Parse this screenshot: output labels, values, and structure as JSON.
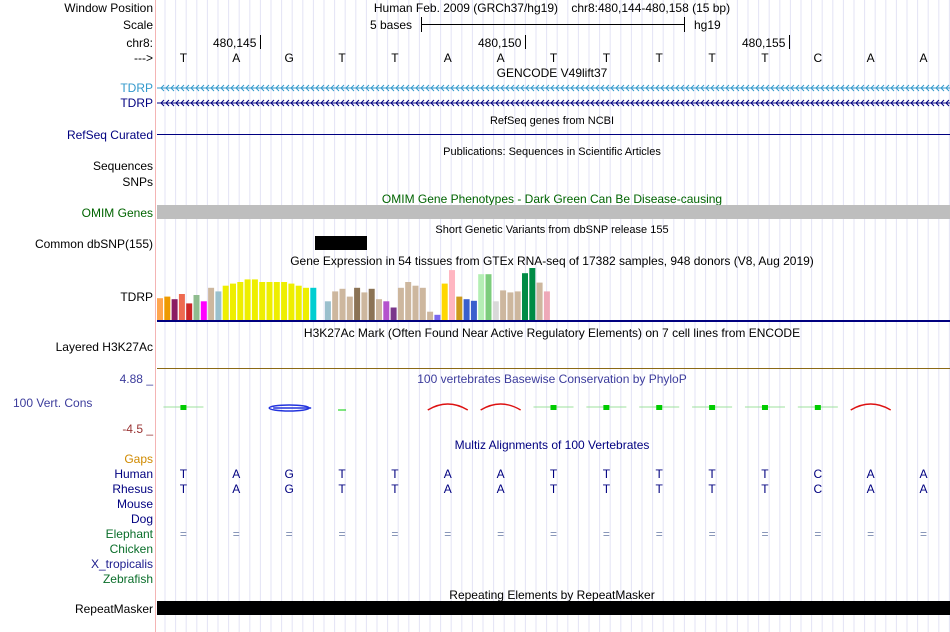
{
  "header": {
    "window_position_label": "Window Position",
    "window_position_value": "Human Feb. 2009 (GRCh37/hg19)    chr8:480,144-480,158 (15 bp)",
    "scale_label": "Scale",
    "scale_value": "5 bases",
    "scale_assembly": "hg19",
    "chrom_label": "chr8:",
    "coords": [
      "480,145",
      "480,150",
      "480,155"
    ],
    "strand_label": "--->"
  },
  "bases": [
    "T",
    "A",
    "G",
    "T",
    "T",
    "A",
    "A",
    "T",
    "T",
    "T",
    "T",
    "T",
    "C",
    "A",
    "A"
  ],
  "tracks": {
    "gencode": {
      "title": "GENCODE V49lift37",
      "items": [
        "TDRP",
        "TDRP"
      ]
    },
    "refseq": {
      "title": "RefSeq genes from NCBI",
      "label": "RefSeq Curated"
    },
    "publications": {
      "title": "Publications: Sequences in Scientific Articles",
      "labels": [
        "Sequences",
        "SNPs"
      ]
    },
    "omim": {
      "title": "OMIM Gene Phenotypes - Dark Green Can Be Disease-causing",
      "label": "OMIM Genes"
    },
    "dbsnp": {
      "title": "Short Genetic Variants from dbSNP release 155",
      "label": "Common dbSNP(155)"
    },
    "gtex": {
      "title": "Gene Expression in 54 tissues from GTEx RNA-seq of 17382 samples, 948 donors (V8, Aug 2019)",
      "label": "TDRP",
      "tissues": [
        {
          "value": 0.42,
          "color": "#FFA54F"
        },
        {
          "value": 0.45,
          "color": "#EE9A00"
        },
        {
          "value": 0.4,
          "color": "#8B1C62"
        },
        {
          "value": 0.5,
          "color": "#EE6A50"
        },
        {
          "value": 0.32,
          "color": "#CD2626"
        },
        {
          "value": 0.48,
          "color": "#8FBC8F"
        },
        {
          "value": 0.36,
          "color": "#FF00FF"
        },
        {
          "value": 0.62,
          "color": "#CDB79E"
        },
        {
          "value": 0.55,
          "color": "#9AC0CD"
        },
        {
          "value": 0.66,
          "color": "#EEEE00"
        },
        {
          "value": 0.7,
          "color": "#EEEE00"
        },
        {
          "value": 0.73,
          "color": "#EEEE00"
        },
        {
          "value": 0.78,
          "color": "#EEEE00"
        },
        {
          "value": 0.78,
          "color": "#EEEE00"
        },
        {
          "value": 0.73,
          "color": "#EEEE00"
        },
        {
          "value": 0.73,
          "color": "#EEEE00"
        },
        {
          "value": 0.73,
          "color": "#EEEE00"
        },
        {
          "value": 0.73,
          "color": "#EEEE00"
        },
        {
          "value": 0.7,
          "color": "#EEEE00"
        },
        {
          "value": 0.66,
          "color": "#EEEE00"
        },
        {
          "value": 0.62,
          "color": "#EEEE00"
        },
        {
          "value": 0.62,
          "color": "#00CED1"
        },
        {
          "value": 0.0,
          "color": "#7A67EE"
        },
        {
          "value": 0.36,
          "color": "#9AC0CD"
        },
        {
          "value": 0.55,
          "color": "#CDB79E"
        },
        {
          "value": 0.6,
          "color": "#CDB79E"
        },
        {
          "value": 0.45,
          "color": "#CDB79E"
        },
        {
          "value": 0.62,
          "color": "#8B7355"
        },
        {
          "value": 0.53,
          "color": "#CDB79E"
        },
        {
          "value": 0.6,
          "color": "#8B7355"
        },
        {
          "value": 0.4,
          "color": "#CDB79E"
        },
        {
          "value": 0.36,
          "color": "#B452CD"
        },
        {
          "value": 0.24,
          "color": "#7A378B"
        },
        {
          "value": 0.62,
          "color": "#CDB79E"
        },
        {
          "value": 0.73,
          "color": "#CDB79E"
        },
        {
          "value": 0.66,
          "color": "#CDB79E"
        },
        {
          "value": 0.62,
          "color": "#CDB79E"
        },
        {
          "value": 0.16,
          "color": "#CDB79E"
        },
        {
          "value": 0.1,
          "color": "#7A67EE"
        },
        {
          "value": 0.7,
          "color": "#FFD700"
        },
        {
          "value": 0.96,
          "color": "#FFB6C1"
        },
        {
          "value": 0.45,
          "color": "#CD9B1D"
        },
        {
          "value": 0.4,
          "color": "#3A5FCD"
        },
        {
          "value": 0.37,
          "color": "#3A5FCD"
        },
        {
          "value": 0.88,
          "color": "#B4EEB4"
        },
        {
          "value": 0.88,
          "color": "#7CCD7C"
        },
        {
          "value": 0.36,
          "color": "#D9D9D9"
        },
        {
          "value": 0.57,
          "color": "#CDB79E"
        },
        {
          "value": 0.53,
          "color": "#CDB79E"
        },
        {
          "value": 0.55,
          "color": "#CDB79E"
        },
        {
          "value": 0.9,
          "color": "#008B45"
        },
        {
          "value": 1.0,
          "color": "#008B45"
        },
        {
          "value": 0.72,
          "color": "#CDB79E"
        },
        {
          "value": 0.55,
          "color": "#EEA9B8"
        }
      ]
    },
    "h3k27ac": {
      "title": "H3K27Ac Mark (Often Found Near Active Regulatory Elements) on 7 cell lines from ENCODE",
      "label": "Layered H3K27Ac"
    },
    "conservation": {
      "title": "100 vertebrates Basewise Conservation by PhyloP",
      "label": "100 Vert. Cons",
      "max": "4.88 _",
      "min": "-4.5 _"
    },
    "multiz": {
      "title": "Multiz Alignments of 100 Vertebrates",
      "gaps_label": "Gaps",
      "species": [
        {
          "name": "Human",
          "seq": [
            "T",
            "A",
            "G",
            "T",
            "T",
            "A",
            "A",
            "T",
            "T",
            "T",
            "T",
            "T",
            "C",
            "A",
            "A"
          ]
        },
        {
          "name": "Rhesus",
          "seq": [
            "T",
            "A",
            "G",
            "T",
            "T",
            "A",
            "A",
            "T",
            "T",
            "T",
            "T",
            "T",
            "C",
            "A",
            "A"
          ]
        },
        {
          "name": "Mouse",
          "seq": []
        },
        {
          "name": "Dog",
          "seq": []
        },
        {
          "name": "Elephant",
          "seq": [
            "=",
            "=",
            "=",
            "=",
            "=",
            "=",
            "=",
            "=",
            "=",
            "=",
            "=",
            "=",
            "=",
            "=",
            "="
          ]
        },
        {
          "name": "Chicken",
          "seq": []
        },
        {
          "name": "X_tropicalis",
          "seq": []
        },
        {
          "name": "Zebrafish",
          "seq": []
        }
      ]
    },
    "repeatmasker": {
      "title": "Repeating Elements by RepeatMasker",
      "label": "RepeatMasker"
    }
  },
  "colors": {
    "navy": "#000080",
    "gencode_light": "#3399cc",
    "omim_green": "#006400",
    "cons_blue": "#3c3c9c",
    "cons_min": "#993333",
    "gaps_orange": "#d08a00",
    "elephant_green": "#0a6e2a",
    "tropicalis_blue": "#1a1a8c"
  }
}
